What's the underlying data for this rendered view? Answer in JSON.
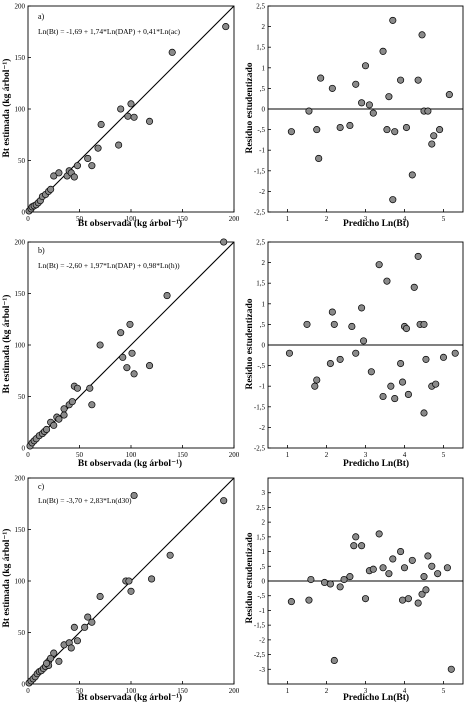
{
  "figure": {
    "panels_left_xlabel": "Bt observada (kg árbol⁻¹)",
    "panels_left_ylabel": "Bt estimada (kg árbol⁻¹)",
    "panels_right_xlabel": "Predicho Ln(Bt)",
    "panels_right_ylabel": "Residuo estudentizado"
  },
  "chart_data": [
    {
      "id": "a-left",
      "type": "scatter",
      "panel_letter": "a)",
      "equation": "Ln(Bt) = -1,69 + 1,74*Ln(DAP) + 0,41*Ln(ac)",
      "xlabel": "Bt observada (kg árbol⁻¹)",
      "ylabel": "Bt estimada (kg árbol⁻¹)",
      "xlim": [
        0,
        200
      ],
      "ylim": [
        0,
        200
      ],
      "xticks": [
        0,
        50,
        100,
        150,
        200
      ],
      "yticks": [
        0,
        50,
        100,
        150,
        200
      ],
      "reference_line": "1:1",
      "points": [
        [
          1,
          1
        ],
        [
          3,
          3
        ],
        [
          4,
          5
        ],
        [
          6,
          6
        ],
        [
          8,
          7
        ],
        [
          10,
          9
        ],
        [
          12,
          11
        ],
        [
          14,
          15
        ],
        [
          17,
          17
        ],
        [
          20,
          20
        ],
        [
          22,
          22
        ],
        [
          25,
          35
        ],
        [
          30,
          38
        ],
        [
          38,
          35
        ],
        [
          40,
          40
        ],
        [
          42,
          38
        ],
        [
          45,
          34
        ],
        [
          48,
          45
        ],
        [
          58,
          52
        ],
        [
          62,
          45
        ],
        [
          68,
          62
        ],
        [
          71,
          85
        ],
        [
          88,
          65
        ],
        [
          90,
          100
        ],
        [
          97,
          93
        ],
        [
          100,
          105
        ],
        [
          103,
          92
        ],
        [
          118,
          88
        ],
        [
          140,
          155
        ],
        [
          192,
          180
        ]
      ]
    },
    {
      "id": "a-right",
      "type": "scatter",
      "xlabel": "Predicho Ln(Bt)",
      "ylabel": "Residuo estudentizado",
      "xlim": [
        0.5,
        5.5
      ],
      "ylim": [
        -2.5,
        2.5
      ],
      "xticks": [
        1,
        2,
        3,
        4,
        5
      ],
      "yticks": [
        -2.5,
        -2,
        -1.5,
        -1,
        -0.5,
        0,
        0.5,
        1,
        1.5,
        2,
        2.5
      ],
      "reference_line": "y=0",
      "points": [
        [
          1.1,
          -0.55
        ],
        [
          1.55,
          -0.05
        ],
        [
          1.75,
          -0.5
        ],
        [
          1.8,
          -1.2
        ],
        [
          1.85,
          0.75
        ],
        [
          2.15,
          0.5
        ],
        [
          2.35,
          -0.45
        ],
        [
          2.6,
          -0.4
        ],
        [
          2.75,
          0.6
        ],
        [
          2.9,
          0.15
        ],
        [
          3.0,
          1.05
        ],
        [
          3.1,
          0.1
        ],
        [
          3.2,
          -0.1
        ],
        [
          3.45,
          1.4
        ],
        [
          3.55,
          -0.5
        ],
        [
          3.6,
          0.3
        ],
        [
          3.7,
          2.15
        ],
        [
          3.75,
          -0.55
        ],
        [
          3.9,
          0.7
        ],
        [
          4.05,
          -0.45
        ],
        [
          4.2,
          -1.6
        ],
        [
          4.35,
          0.7
        ],
        [
          4.45,
          1.8
        ],
        [
          4.5,
          -0.05
        ],
        [
          4.6,
          -0.05
        ],
        [
          4.7,
          -0.85
        ],
        [
          4.75,
          -0.65
        ],
        [
          4.9,
          -0.5
        ],
        [
          5.15,
          0.35
        ],
        [
          3.7,
          -2.2
        ]
      ]
    },
    {
      "id": "b-left",
      "type": "scatter",
      "panel_letter": "b)",
      "equation": "Ln(Bt) = -2,60 + 1,97*Ln(DAP) + 0,98*Ln(h))",
      "xlabel": "Bt observada (kg árbol⁻¹)",
      "ylabel": "Bt estimada (kg árbol⁻¹)",
      "xlim": [
        0,
        200
      ],
      "ylim": [
        0,
        200
      ],
      "xticks": [
        0,
        50,
        100,
        150,
        200
      ],
      "yticks": [
        0,
        50,
        100,
        150,
        200
      ],
      "reference_line": "1:1",
      "points": [
        [
          2,
          2
        ],
        [
          4,
          5
        ],
        [
          6,
          7
        ],
        [
          8,
          9
        ],
        [
          11,
          12
        ],
        [
          14,
          14
        ],
        [
          16,
          16
        ],
        [
          18,
          18
        ],
        [
          22,
          25
        ],
        [
          28,
          30
        ],
        [
          35,
          38
        ],
        [
          40,
          42
        ],
        [
          43,
          45
        ],
        [
          45,
          60
        ],
        [
          48,
          58
        ],
        [
          60,
          58
        ],
        [
          62,
          42
        ],
        [
          70,
          100
        ],
        [
          90,
          112
        ],
        [
          92,
          88
        ],
        [
          96,
          78
        ],
        [
          99,
          120
        ],
        [
          101,
          92
        ],
        [
          103,
          72
        ],
        [
          118,
          80
        ],
        [
          135,
          148
        ],
        [
          190,
          200
        ],
        [
          25,
          22
        ],
        [
          30,
          28
        ],
        [
          35,
          32
        ]
      ]
    },
    {
      "id": "b-right",
      "type": "scatter",
      "xlabel": "Predicho Ln(Bt)",
      "ylabel": "Residuo estudentizado",
      "xlim": [
        0.5,
        5.5
      ],
      "ylim": [
        -2.5,
        2.5
      ],
      "xticks": [
        1,
        2,
        3,
        4,
        5
      ],
      "yticks": [
        -2.5,
        -2,
        -1.5,
        -1,
        -0.5,
        0,
        0.5,
        1,
        1.5,
        2,
        2.5
      ],
      "reference_line": "y=0",
      "points": [
        [
          1.05,
          -0.2
        ],
        [
          1.5,
          0.5
        ],
        [
          1.7,
          -1.0
        ],
        [
          1.75,
          -0.85
        ],
        [
          2.1,
          -0.45
        ],
        [
          2.15,
          0.8
        ],
        [
          2.2,
          0.5
        ],
        [
          2.35,
          -0.35
        ],
        [
          2.65,
          0.45
        ],
        [
          2.75,
          -0.2
        ],
        [
          2.9,
          0.9
        ],
        [
          2.95,
          0.1
        ],
        [
          3.15,
          -0.65
        ],
        [
          3.35,
          1.95
        ],
        [
          3.45,
          -1.25
        ],
        [
          3.55,
          1.55
        ],
        [
          3.65,
          -1.0
        ],
        [
          3.75,
          -1.3
        ],
        [
          3.9,
          -0.45
        ],
        [
          3.95,
          -0.9
        ],
        [
          4.0,
          0.45
        ],
        [
          4.05,
          0.4
        ],
        [
          4.1,
          -1.2
        ],
        [
          4.25,
          1.4
        ],
        [
          4.35,
          2.15
        ],
        [
          4.4,
          0.5
        ],
        [
          4.5,
          -1.65
        ],
        [
          4.55,
          -0.35
        ],
        [
          4.7,
          -1.0
        ],
        [
          4.8,
          -0.95
        ],
        [
          5.0,
          -0.3
        ],
        [
          5.3,
          -0.2
        ],
        [
          4.5,
          0.5
        ]
      ]
    },
    {
      "id": "c-left",
      "type": "scatter",
      "panel_letter": "c)",
      "equation": "Ln(Bt) = -3,70 + 2,83*Ln(d30)",
      "xlabel": "Bt observada (kg árbol⁻¹)",
      "ylabel": "Bt estimada (kg árbol⁻¹)",
      "xlim": [
        0,
        200
      ],
      "ylim": [
        0,
        200
      ],
      "xticks": [
        0,
        50,
        100,
        150,
        200
      ],
      "yticks": [
        0,
        50,
        100,
        150,
        200
      ],
      "reference_line": "1:1",
      "points": [
        [
          1,
          1
        ],
        [
          3,
          3
        ],
        [
          5,
          5
        ],
        [
          7,
          7
        ],
        [
          9,
          10
        ],
        [
          11,
          12
        ],
        [
          13,
          13
        ],
        [
          15,
          15
        ],
        [
          17,
          17
        ],
        [
          20,
          22
        ],
        [
          22,
          25
        ],
        [
          25,
          30
        ],
        [
          30,
          22
        ],
        [
          35,
          38
        ],
        [
          40,
          40
        ],
        [
          42,
          35
        ],
        [
          45,
          55
        ],
        [
          48,
          42
        ],
        [
          55,
          55
        ],
        [
          58,
          65
        ],
        [
          62,
          60
        ],
        [
          70,
          85
        ],
        [
          95,
          100
        ],
        [
          98,
          100
        ],
        [
          100,
          90
        ],
        [
          103,
          183
        ],
        [
          120,
          102
        ],
        [
          138,
          125
        ],
        [
          190,
          178
        ],
        [
          20,
          18
        ],
        [
          18,
          20
        ]
      ]
    },
    {
      "id": "c-right",
      "type": "scatter",
      "xlabel": "Predicho Ln(Bt)",
      "ylabel": "Residuo estudentizado",
      "xlim": [
        0.5,
        5.5
      ],
      "ylim": [
        -3.5,
        3.5
      ],
      "xticks": [
        1,
        2,
        3,
        4,
        5
      ],
      "yticks": [
        -3,
        -2.5,
        -2,
        -1.5,
        -1,
        -0.5,
        0,
        0.5,
        1,
        1.5,
        2,
        2.5,
        3
      ],
      "reference_line": "y=0",
      "points": [
        [
          1.1,
          -0.7
        ],
        [
          1.55,
          -0.65
        ],
        [
          1.6,
          0.05
        ],
        [
          1.95,
          -0.05
        ],
        [
          2.1,
          -0.1
        ],
        [
          2.2,
          -2.7
        ],
        [
          2.35,
          -0.2
        ],
        [
          2.45,
          0.05
        ],
        [
          2.6,
          0.15
        ],
        [
          2.7,
          1.2
        ],
        [
          2.75,
          1.5
        ],
        [
          2.9,
          1.2
        ],
        [
          3.0,
          -0.6
        ],
        [
          3.1,
          0.35
        ],
        [
          3.2,
          0.4
        ],
        [
          3.35,
          1.6
        ],
        [
          3.45,
          0.45
        ],
        [
          3.6,
          0.25
        ],
        [
          3.7,
          0.75
        ],
        [
          3.9,
          1.0
        ],
        [
          3.95,
          -0.65
        ],
        [
          4.0,
          0.45
        ],
        [
          4.1,
          -0.6
        ],
        [
          4.2,
          0.7
        ],
        [
          4.35,
          -0.75
        ],
        [
          4.45,
          -0.45
        ],
        [
          4.55,
          -0.3
        ],
        [
          4.6,
          0.85
        ],
        [
          4.7,
          0.5
        ],
        [
          4.85,
          0.25
        ],
        [
          5.1,
          0.45
        ],
        [
          5.2,
          -3.0
        ],
        [
          4.5,
          0.15
        ]
      ]
    }
  ]
}
